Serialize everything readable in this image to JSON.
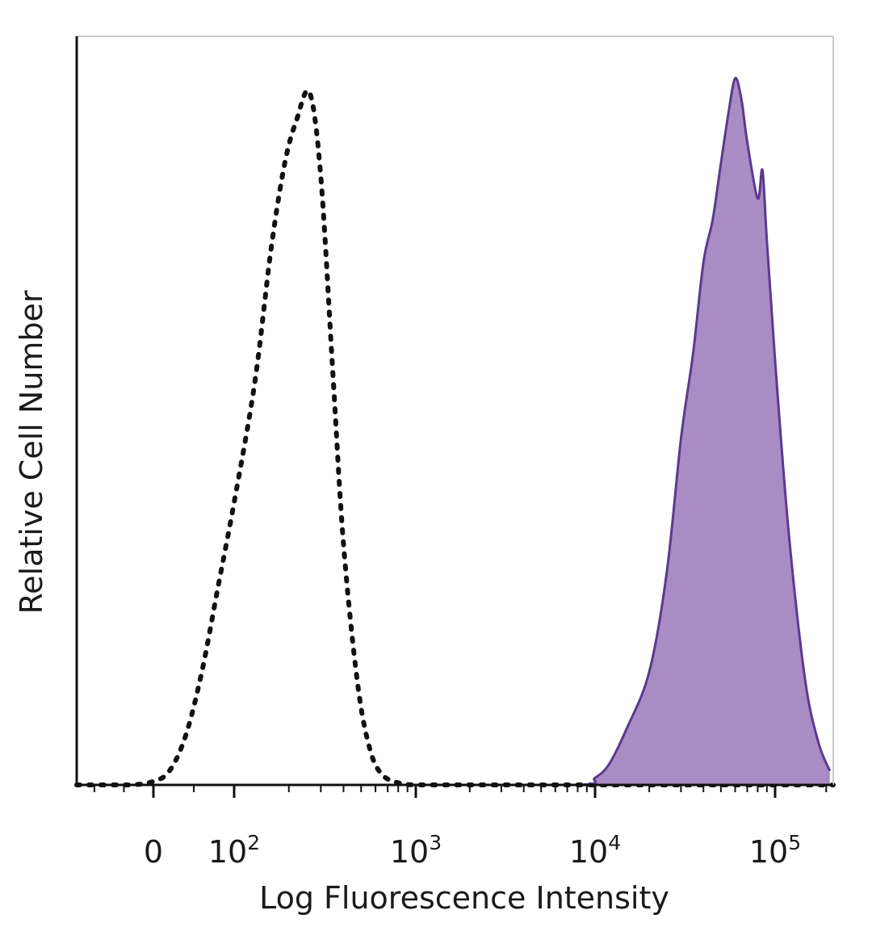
{
  "chart_data": {
    "type": "area",
    "xscale": "biexponential",
    "xlabel": "Log Fluorescence Intensity",
    "ylabel": "Relative Cell Number",
    "xticks": [
      {
        "value": 0,
        "base": "0",
        "exp": ""
      },
      {
        "value": 100,
        "base": "10",
        "exp": "2"
      },
      {
        "value": 1000,
        "base": "10",
        "exp": "3"
      },
      {
        "value": 10000,
        "base": "10",
        "exp": "4"
      },
      {
        "value": 100000,
        "base": "10",
        "exp": "5"
      }
    ],
    "xlim": [
      -130,
      220000
    ],
    "ylim": [
      0,
      1
    ],
    "grid": false,
    "legend": "none",
    "series": [
      {
        "style": "dotted-outline",
        "color": "#111111",
        "x": [
          -130,
          -40,
          0,
          20,
          40,
          60,
          80,
          100,
          130,
          160,
          190,
          220,
          260,
          300,
          350,
          400,
          480,
          560,
          650,
          800,
          1000,
          1500,
          3000,
          6000,
          10000,
          220000
        ],
        "y": [
          0.0,
          0.0,
          0.005,
          0.02,
          0.07,
          0.16,
          0.28,
          0.4,
          0.57,
          0.76,
          0.88,
          0.94,
          0.98,
          0.86,
          0.58,
          0.34,
          0.14,
          0.05,
          0.015,
          0.003,
          0.0,
          0.0,
          0.0,
          0.0,
          0.0,
          0.0
        ]
      },
      {
        "style": "filled",
        "color": "#5a3a8e",
        "fill": "#a98cc3",
        "x": [
          -130,
          0,
          100,
          1000,
          8000,
          10000,
          12000,
          15000,
          20000,
          25000,
          30000,
          35000,
          40000,
          45000,
          50000,
          55000,
          60000,
          65000,
          70000,
          80000,
          85000,
          90000,
          100000,
          120000,
          150000,
          180000,
          210000
        ],
        "y": [
          0.0,
          0.0,
          0.0,
          0.0,
          0.0,
          0.01,
          0.03,
          0.08,
          0.16,
          0.3,
          0.49,
          0.61,
          0.74,
          0.8,
          0.88,
          0.95,
          1.0,
          0.97,
          0.91,
          0.83,
          0.87,
          0.77,
          0.6,
          0.36,
          0.15,
          0.06,
          0.02
        ]
      }
    ]
  }
}
